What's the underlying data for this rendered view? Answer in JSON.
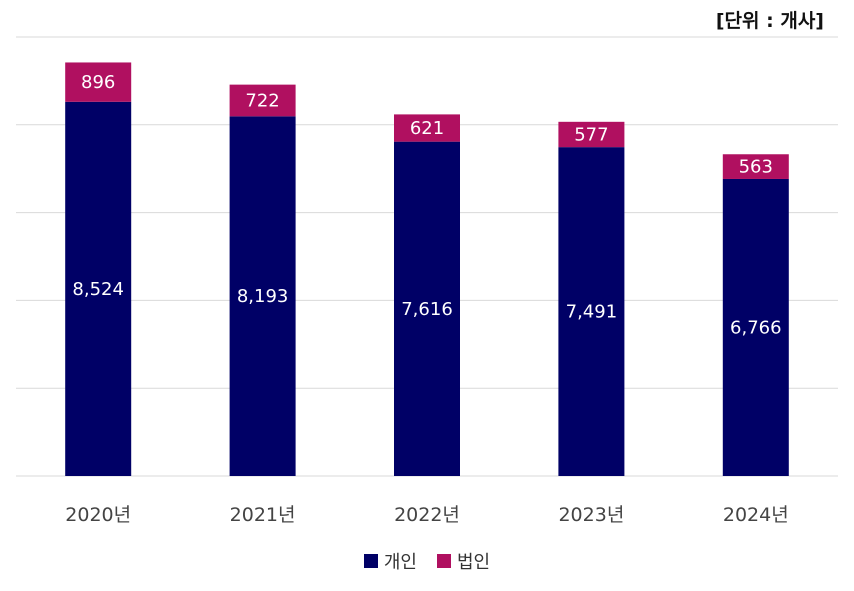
{
  "unit_label": "[단위 : 개사]",
  "colors": {
    "individual": "#000066",
    "corporate": "#B01060",
    "grid": "#d9d9d9",
    "axis_text": "#444444"
  },
  "chart_data": {
    "type": "bar",
    "stacked": true,
    "categories": [
      "2020년",
      "2021년",
      "2022년",
      "2023년",
      "2024년"
    ],
    "series": [
      {
        "name": "개인",
        "values": [
          8524,
          8193,
          7616,
          7491,
          6766
        ]
      },
      {
        "name": "법인",
        "values": [
          896,
          722,
          621,
          577,
          563
        ]
      }
    ],
    "value_labels": [
      [
        "8,524",
        "8,193",
        "7,616",
        "7,491",
        "6,766"
      ],
      [
        "896",
        "722",
        "621",
        "577",
        "563"
      ]
    ],
    "ylim": [
      0,
      10000
    ],
    "grid": true,
    "legend": "bottom-center"
  }
}
